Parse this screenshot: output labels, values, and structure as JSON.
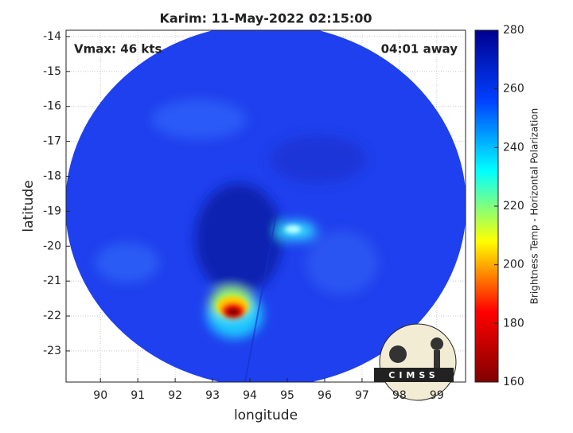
{
  "chart_data": {
    "type": "image",
    "title": "Karim: 11-May-2022 02:15:00",
    "annotations": [
      "Vmax: 46 kts",
      "04:01 away"
    ],
    "xlabel": "longitude",
    "ylabel": "latitude",
    "xlim": [
      89.08,
      99.77
    ],
    "ylim": [
      -23.89,
      -13.82
    ],
    "xticks": [
      90,
      91,
      92,
      93,
      94,
      95,
      96,
      97,
      98,
      99
    ],
    "yticks": [
      -14,
      -15,
      -16,
      -17,
      -18,
      -19,
      -20,
      -21,
      -22,
      -23
    ],
    "grid": true,
    "colorbar": {
      "label": "Brightness Temp - Horizontal Polarization",
      "lim": [
        160,
        280
      ],
      "ticks": [
        160,
        180,
        200,
        220,
        240,
        260,
        280
      ],
      "colors": [
        "#800000",
        "#ff0000",
        "#ffff00",
        "#00ffff",
        "#0040ff",
        "#00008f"
      ]
    },
    "logo_text": "CIMSS"
  }
}
